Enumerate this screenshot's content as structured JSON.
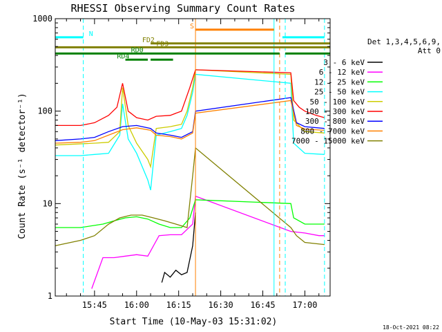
{
  "chart_data": {
    "type": "line",
    "title": "RHESSI Observing Summary Count Rates",
    "xlabel": "Start Time (10-May-03 15:31:02)",
    "ylabel": "Count Rate (s⁻¹ detector⁻¹)",
    "y_scale": "log",
    "xlim": [
      "15:31",
      "17:09"
    ],
    "ylim": [
      1,
      1000
    ],
    "x_ticks": [
      "15:45",
      "16:00",
      "16:15",
      "16:30",
      "16:45",
      "17:00"
    ],
    "y_ticks": [
      "1",
      "10",
      "100",
      "1000"
    ],
    "legend_header": [
      "Det 1,3,4,5,6,9,",
      "Att 0"
    ],
    "legend_position": "right",
    "series": [
      {
        "name": "3 - 6 keV",
        "color": "#000000",
        "x": [
          "16:09",
          "16:10",
          "16:12",
          "16:14",
          "16:16",
          "16:18",
          "16:20",
          "16:21"
        ],
        "values": [
          1.4,
          1.8,
          1.6,
          1.9,
          1.7,
          1.8,
          3.5,
          8.0
        ]
      },
      {
        "name": "6 - 12 keV",
        "color": "#ff00ff",
        "x": [
          "15:44",
          "15:48",
          "15:52",
          "15:56",
          "16:00",
          "16:04",
          "16:08",
          "16:12",
          "16:16",
          "16:20",
          "16:21",
          "16:55",
          "17:00",
          "17:05",
          "17:07"
        ],
        "values": [
          1.2,
          2.6,
          2.6,
          2.7,
          2.8,
          2.7,
          4.5,
          4.6,
          4.6,
          6.0,
          12.0,
          5.0,
          4.8,
          4.5,
          4.5
        ]
      },
      {
        "name": "12 - 25 keV",
        "color": "#00ff00",
        "x": [
          "15:31",
          "15:40",
          "15:48",
          "15:52",
          "15:56",
          "16:00",
          "16:04",
          "16:08",
          "16:12",
          "16:16",
          "16:19",
          "16:21",
          "16:55",
          "16:56",
          "17:00",
          "17:07"
        ],
        "values": [
          5.5,
          5.5,
          6.0,
          6.5,
          7.0,
          7.2,
          6.8,
          6.0,
          5.5,
          5.5,
          7.0,
          11.0,
          10.0,
          7.0,
          6.0,
          6.0
        ]
      },
      {
        "name": "25 - 50 keV",
        "color": "#00ffff",
        "x": [
          "15:31",
          "15:40",
          "15:45",
          "15:50",
          "15:54",
          "15:55",
          "15:57",
          "16:00",
          "16:04",
          "16:05",
          "16:07",
          "16:12",
          "16:16",
          "16:18",
          "16:20",
          "16:21",
          "16:55",
          "16:56",
          "17:00",
          "17:07"
        ],
        "values": [
          33,
          33,
          34,
          35,
          55,
          120,
          50,
          35,
          18,
          14,
          55,
          60,
          65,
          90,
          160,
          250,
          200,
          45,
          35,
          34
        ]
      },
      {
        "name": "50 - 100 keV",
        "color": "#cccc00",
        "x": [
          "15:31",
          "15:45",
          "15:50",
          "15:54",
          "15:55",
          "15:57",
          "16:00",
          "16:04",
          "16:05",
          "16:07",
          "16:12",
          "16:16",
          "16:18",
          "16:20",
          "16:21",
          "16:55",
          "16:56",
          "17:00",
          "17:07"
        ],
        "values": [
          43,
          45,
          46,
          60,
          180,
          70,
          45,
          30,
          25,
          65,
          68,
          72,
          100,
          180,
          280,
          250,
          80,
          60,
          58
        ]
      },
      {
        "name": "100 - 300 keV",
        "color": "#ff0000",
        "x": [
          "15:31",
          "15:40",
          "15:45",
          "15:50",
          "15:53",
          "15:55",
          "15:57",
          "16:00",
          "16:04",
          "16:07",
          "16:12",
          "16:16",
          "16:19",
          "16:21",
          "16:55",
          "16:56",
          "16:58",
          "17:00",
          "17:04",
          "17:07"
        ],
        "values": [
          70,
          70,
          75,
          90,
          110,
          200,
          100,
          85,
          80,
          88,
          90,
          100,
          180,
          280,
          260,
          130,
          110,
          100,
          90,
          85
        ]
      },
      {
        "name": "300 - 800 keV",
        "color": "#0000ff",
        "x": [
          "15:31",
          "15:40",
          "15:45",
          "15:50",
          "15:55",
          "16:00",
          "16:05",
          "16:07",
          "16:12",
          "16:16",
          "16:20",
          "16:21",
          "16:55",
          "16:57",
          "17:00",
          "17:07"
        ],
        "values": [
          48,
          50,
          52,
          60,
          68,
          70,
          65,
          58,
          55,
          52,
          60,
          100,
          140,
          75,
          68,
          65
        ]
      },
      {
        "name": "800 - 7000 keV",
        "color": "#ff8000",
        "x": [
          "15:31",
          "15:40",
          "15:45",
          "15:50",
          "15:55",
          "16:00",
          "16:05",
          "16:07",
          "16:12",
          "16:16",
          "16:20",
          "16:21",
          "16:55",
          "16:57",
          "17:00",
          "17:07"
        ],
        "values": [
          45,
          46,
          48,
          55,
          63,
          66,
          62,
          55,
          53,
          50,
          58,
          95,
          130,
          70,
          64,
          62
        ]
      },
      {
        "name": "7000 - 15000 keV",
        "color": "#808000",
        "x": [
          "15:31",
          "15:40",
          "15:45",
          "15:50",
          "15:54",
          "15:58",
          "16:02",
          "16:06",
          "16:10",
          "16:14",
          "16:18",
          "16:20",
          "16:21",
          "16:55",
          "16:57",
          "17:00",
          "17:07"
        ],
        "values": [
          3.5,
          4.0,
          4.5,
          6.0,
          7.0,
          7.5,
          7.5,
          7.0,
          6.5,
          6.0,
          5.5,
          20.0,
          40.0,
          5.5,
          4.5,
          3.8,
          3.6
        ]
      }
    ],
    "flags": [
      {
        "label": "N",
        "color": "#00ffff",
        "level": 630,
        "segments": [
          [
            "15:31",
            "15:41"
          ],
          [
            "16:52",
            "17:07"
          ]
        ],
        "label_at": "15:43"
      },
      {
        "label": "S",
        "color": "#ff8000",
        "level": 760,
        "segments": [
          [
            "16:21",
            "16:49"
          ]
        ],
        "label_at": "16:19"
      },
      {
        "label": "FD2",
        "color": "#808000",
        "level": 540,
        "segments": [
          [
            "16:05",
            "17:09"
          ]
        ],
        "label_at": "16:02"
      },
      {
        "label": "FD3",
        "color": "#808000",
        "level": 490,
        "segments": [
          [
            "15:31",
            "17:09"
          ]
        ],
        "label_at": "16:07"
      },
      {
        "label": "RD0",
        "color": "#008000",
        "level": 420,
        "segments": [
          [
            "15:31",
            "16:51"
          ],
          [
            "16:53",
            "17:09"
          ]
        ],
        "label_at": "15:58"
      },
      {
        "label": "RD4",
        "color": "#008000",
        "level": 360,
        "segments": [
          [
            "15:56",
            "16:04"
          ],
          [
            "16:05",
            "16:13"
          ]
        ],
        "label_at": "15:53"
      }
    ],
    "vlines": [
      {
        "x": "15:31",
        "color": "#00ffff",
        "dashed": true
      },
      {
        "x": "15:41",
        "color": "#00ffff",
        "dashed": true
      },
      {
        "x": "16:21",
        "color": "#ff8000",
        "dashed": false
      },
      {
        "x": "16:49",
        "color": "#00ffff",
        "dashed": false
      },
      {
        "x": "16:51",
        "color": "#ff8000",
        "dashed": true
      },
      {
        "x": "16:53",
        "color": "#00ffff",
        "dashed": true
      },
      {
        "x": "17:07",
        "color": "#00ffff",
        "dashed": true
      }
    ],
    "footer": "18-Oct-2021 08:22"
  }
}
